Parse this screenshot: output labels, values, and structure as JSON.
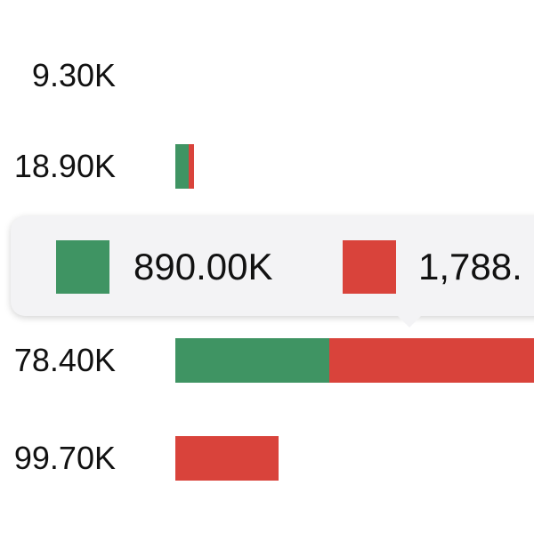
{
  "rows": [
    {
      "label": "9.30K",
      "bars": []
    },
    {
      "label": "18.90K",
      "bars": [
        {
          "color": "#3f9463",
          "value": 77
        },
        {
          "color": "#d9433b",
          "value": 31
        }
      ]
    },
    {
      "bars": []
    },
    {
      "label": "78.40K",
      "bars": [
        {
          "color": "#3f9463",
          "value": 890
        },
        {
          "color": "#d9433b",
          "value": 1788
        }
      ]
    },
    {
      "label": "99.70K",
      "bars": [
        {
          "color": "#d9433b",
          "value": 597
        }
      ]
    }
  ],
  "tooltip": {
    "items": [
      {
        "color": "#3f9463",
        "text": "890.00K"
      },
      {
        "color": "#d9433b",
        "text": "1,788."
      }
    ]
  }
}
